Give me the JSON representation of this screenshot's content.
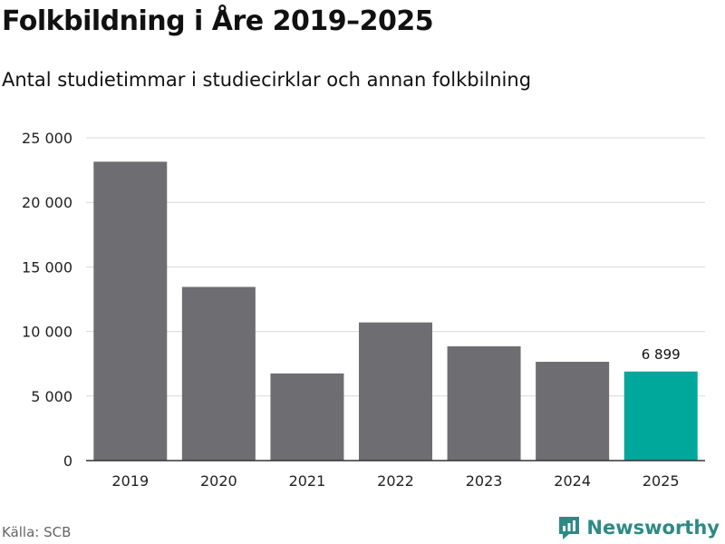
{
  "chart_data": {
    "type": "bar",
    "title": "Folkbildning i Åre 2019–2025",
    "subtitle": "Antal studietimmar i studiecirklar och annan folkbilning",
    "categories": [
      "2019",
      "2020",
      "2021",
      "2022",
      "2023",
      "2024",
      "2025"
    ],
    "values": [
      23150,
      13450,
      6750,
      10700,
      8850,
      7650,
      6899
    ],
    "highlight_index": 6,
    "data_labels": [
      {
        "index": 6,
        "text": "6 899"
      }
    ],
    "ylim": [
      0,
      25000
    ],
    "yticks": [
      0,
      5000,
      10000,
      15000,
      20000,
      25000
    ],
    "ytick_labels": [
      "0",
      "5 000",
      "10 000",
      "15 000",
      "20 000",
      "25 000"
    ],
    "xlabel": "",
    "ylabel": "",
    "grid": true,
    "colors": {
      "bar": "#6e6d72",
      "highlight": "#00a79b",
      "grid": "#d9d9d9",
      "axis": "#333333"
    }
  },
  "footer": {
    "source": "Källa: SCB",
    "brand": "Newsworthy"
  },
  "brand_color": "#2d8a86"
}
